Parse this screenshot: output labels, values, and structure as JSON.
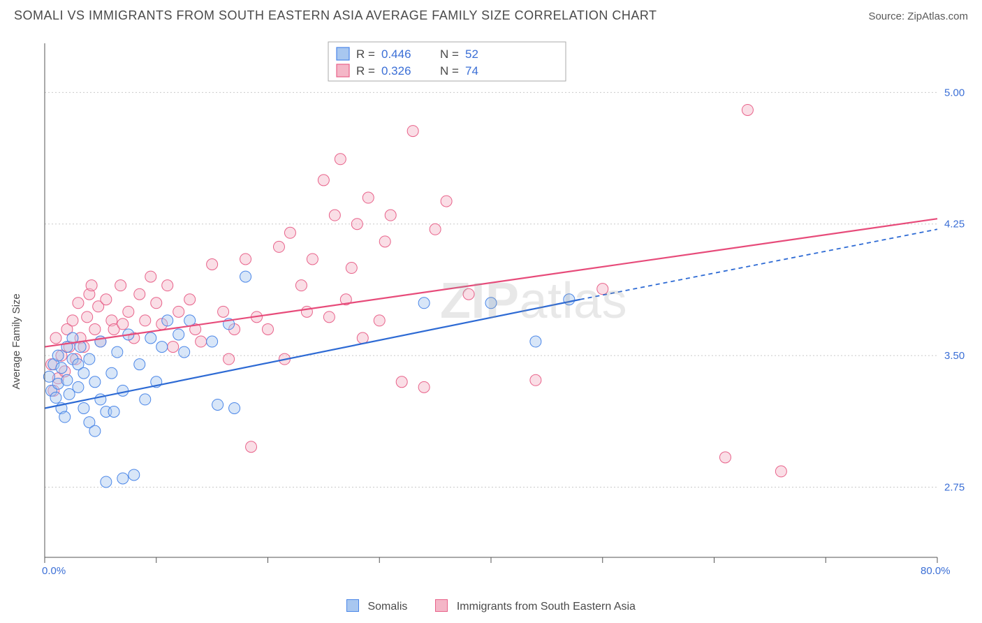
{
  "header": {
    "title": "SOMALI VS IMMIGRANTS FROM SOUTH EASTERN ASIA AVERAGE FAMILY SIZE CORRELATION CHART",
    "source": "Source: ZipAtlas.com"
  },
  "watermark": {
    "zip": "ZIP",
    "atlas": "atlas"
  },
  "chart": {
    "type": "scatter",
    "background_color": "#ffffff",
    "grid_color": "#c9c9c9",
    "border_color": "#555555",
    "y_axis_title": "Average Family Size",
    "y_axis_title_fontsize": 15,
    "tick_label_color": "#3b6fd6",
    "tick_fontsize": 15,
    "xlim": [
      0.0,
      80.0
    ],
    "ylim": [
      2.35,
      5.28
    ],
    "x_ticks": [
      0,
      10,
      20,
      30,
      40,
      50,
      60,
      70,
      80
    ],
    "y_ticks": [
      2.75,
      3.5,
      4.25,
      5.0
    ],
    "x_tick_label_left": "0.0%",
    "x_tick_label_right": "80.0%",
    "y_tick_labels": [
      "2.75",
      "3.50",
      "4.25",
      "5.00"
    ],
    "point_radius": 8,
    "point_opacity_fill": 0.45,
    "series": {
      "somalis": {
        "label": "Somalis",
        "stroke": "#4a86e8",
        "fill": "#a8c7f0",
        "line_color": "#2d6ad4",
        "r_label": "R = ",
        "r_value": "0.446",
        "n_label": "N = ",
        "n_value": "52",
        "trend_start": [
          0.0,
          3.2
        ],
        "trend_solid_end": [
          48.0,
          3.82
        ],
        "trend_dash_end": [
          80.0,
          4.22
        ],
        "points": [
          [
            0.4,
            3.38
          ],
          [
            0.6,
            3.3
          ],
          [
            0.8,
            3.45
          ],
          [
            1.0,
            3.26
          ],
          [
            1.2,
            3.5
          ],
          [
            1.2,
            3.34
          ],
          [
            1.5,
            3.2
          ],
          [
            1.5,
            3.43
          ],
          [
            1.8,
            3.15
          ],
          [
            2.0,
            3.55
          ],
          [
            2.0,
            3.36
          ],
          [
            2.2,
            3.28
          ],
          [
            2.5,
            3.48
          ],
          [
            2.5,
            3.6
          ],
          [
            3.0,
            3.32
          ],
          [
            3.0,
            3.45
          ],
          [
            3.2,
            3.55
          ],
          [
            3.5,
            3.2
          ],
          [
            3.5,
            3.4
          ],
          [
            4.0,
            3.48
          ],
          [
            4.0,
            3.12
          ],
          [
            4.5,
            3.35
          ],
          [
            4.5,
            3.07
          ],
          [
            5.0,
            3.25
          ],
          [
            5.0,
            3.58
          ],
          [
            5.5,
            3.18
          ],
          [
            5.5,
            2.78
          ],
          [
            6.0,
            3.4
          ],
          [
            6.2,
            3.18
          ],
          [
            6.5,
            3.52
          ],
          [
            7.0,
            2.8
          ],
          [
            7.0,
            3.3
          ],
          [
            7.5,
            3.62
          ],
          [
            8.0,
            2.82
          ],
          [
            8.5,
            3.45
          ],
          [
            9.0,
            3.25
          ],
          [
            9.5,
            3.6
          ],
          [
            10.0,
            3.35
          ],
          [
            10.5,
            3.55
          ],
          [
            11.0,
            3.7
          ],
          [
            12.0,
            3.62
          ],
          [
            12.5,
            3.52
          ],
          [
            13.0,
            3.7
          ],
          [
            15.0,
            3.58
          ],
          [
            15.5,
            3.22
          ],
          [
            16.5,
            3.68
          ],
          [
            17.0,
            3.2
          ],
          [
            18.0,
            3.95
          ],
          [
            34.0,
            3.8
          ],
          [
            40.0,
            3.8
          ],
          [
            44.0,
            3.58
          ],
          [
            47.0,
            3.82
          ]
        ]
      },
      "se_asia": {
        "label": "Immigrants from South Eastern Asia",
        "stroke": "#e8628a",
        "fill": "#f4b6c7",
        "line_color": "#e74b7a",
        "r_label": "R = ",
        "r_value": "0.326",
        "n_label": "N = ",
        "n_value": "74",
        "trend_start": [
          0.0,
          3.55
        ],
        "trend_solid_end": [
          80.0,
          4.28
        ],
        "points": [
          [
            0.6,
            3.45
          ],
          [
            0.8,
            3.3
          ],
          [
            1.0,
            3.6
          ],
          [
            1.2,
            3.37
          ],
          [
            1.5,
            3.5
          ],
          [
            1.8,
            3.41
          ],
          [
            2.0,
            3.65
          ],
          [
            2.2,
            3.55
          ],
          [
            2.5,
            3.7
          ],
          [
            2.8,
            3.48
          ],
          [
            3.0,
            3.8
          ],
          [
            3.2,
            3.6
          ],
          [
            3.5,
            3.55
          ],
          [
            3.8,
            3.72
          ],
          [
            4.0,
            3.85
          ],
          [
            4.2,
            3.9
          ],
          [
            4.5,
            3.65
          ],
          [
            4.8,
            3.78
          ],
          [
            5.0,
            3.58
          ],
          [
            5.5,
            3.82
          ],
          [
            6.0,
            3.7
          ],
          [
            6.2,
            3.65
          ],
          [
            6.8,
            3.9
          ],
          [
            7.0,
            3.68
          ],
          [
            7.5,
            3.75
          ],
          [
            8.0,
            3.6
          ],
          [
            8.5,
            3.85
          ],
          [
            9.0,
            3.7
          ],
          [
            9.5,
            3.95
          ],
          [
            10.0,
            3.8
          ],
          [
            10.5,
            3.68
          ],
          [
            11.0,
            3.9
          ],
          [
            11.5,
            3.55
          ],
          [
            12.0,
            3.75
          ],
          [
            13.0,
            3.82
          ],
          [
            13.5,
            3.65
          ],
          [
            14.0,
            3.58
          ],
          [
            15.0,
            4.02
          ],
          [
            16.0,
            3.75
          ],
          [
            16.5,
            3.48
          ],
          [
            17.0,
            3.65
          ],
          [
            18.0,
            4.05
          ],
          [
            18.5,
            2.98
          ],
          [
            19.0,
            3.72
          ],
          [
            20.0,
            3.65
          ],
          [
            21.0,
            4.12
          ],
          [
            21.5,
            3.48
          ],
          [
            22.0,
            4.2
          ],
          [
            23.0,
            3.9
          ],
          [
            23.5,
            3.75
          ],
          [
            24.0,
            4.05
          ],
          [
            25.0,
            4.5
          ],
          [
            25.5,
            3.72
          ],
          [
            26.0,
            4.3
          ],
          [
            26.5,
            4.62
          ],
          [
            27.0,
            3.82
          ],
          [
            27.5,
            4.0
          ],
          [
            28.0,
            4.25
          ],
          [
            28.5,
            3.6
          ],
          [
            29.0,
            4.4
          ],
          [
            30.0,
            3.7
          ],
          [
            30.5,
            4.15
          ],
          [
            31.0,
            4.3
          ],
          [
            32.0,
            3.35
          ],
          [
            33.0,
            4.78
          ],
          [
            34.0,
            3.32
          ],
          [
            35.0,
            4.22
          ],
          [
            36.0,
            4.38
          ],
          [
            38.0,
            3.85
          ],
          [
            44.0,
            3.36
          ],
          [
            50.0,
            3.88
          ],
          [
            61.0,
            2.92
          ],
          [
            63.0,
            4.9
          ],
          [
            66.0,
            2.84
          ]
        ]
      }
    },
    "top_legend": {
      "box_stroke": "#aaaaaa",
      "box_fill": "#ffffff",
      "swatch_size": 18
    },
    "bottom_legend": {
      "swatch_size": 18
    }
  }
}
